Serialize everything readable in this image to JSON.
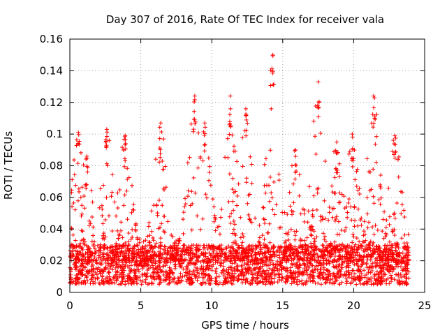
{
  "chart_data": {
    "type": "scatter",
    "title": "Day 307 of 2016, Rate Of TEC Index for receiver vala",
    "xlabel": "GPS time / hours",
    "ylabel": "ROTI / TECUs",
    "xlim": [
      0,
      25
    ],
    "ylim": [
      0,
      0.16
    ],
    "x_ticks": [
      0,
      5,
      10,
      15,
      20,
      25
    ],
    "x_tick_labels": [
      "0",
      "5",
      "10",
      "15",
      "20",
      "25"
    ],
    "y_ticks": [
      0,
      0.02,
      0.04,
      0.06,
      0.08,
      0.1,
      0.12,
      0.14,
      0.16
    ],
    "y_tick_labels": [
      "0",
      "0.02",
      "0.04",
      "0.06",
      "0.08",
      "0.1",
      "0.12",
      "0.14",
      "0.16"
    ],
    "grid": true,
    "marker": "+",
    "marker_color": "#ff0000",
    "series": [
      {
        "name": "ROTI",
        "x_range_hours": [
          0,
          23.9
        ],
        "y_baseline_range": [
          0.005,
          0.03
        ],
        "note": "dense point cloud, several thousand points; notable peaks listed below",
        "peaks": [
          {
            "x": 0.6,
            "y": 0.101
          },
          {
            "x": 1.2,
            "y": 0.086
          },
          {
            "x": 2.6,
            "y": 0.103
          },
          {
            "x": 3.9,
            "y": 0.099
          },
          {
            "x": 6.4,
            "y": 0.107
          },
          {
            "x": 8.8,
            "y": 0.124
          },
          {
            "x": 9.5,
            "y": 0.107
          },
          {
            "x": 11.3,
            "y": 0.124
          },
          {
            "x": 12.4,
            "y": 0.116
          },
          {
            "x": 14.3,
            "y": 0.15
          },
          {
            "x": 15.9,
            "y": 0.09
          },
          {
            "x": 17.5,
            "y": 0.133
          },
          {
            "x": 18.8,
            "y": 0.095
          },
          {
            "x": 19.9,
            "y": 0.1
          },
          {
            "x": 21.4,
            "y": 0.124
          },
          {
            "x": 22.9,
            "y": 0.099
          }
        ]
      }
    ]
  }
}
